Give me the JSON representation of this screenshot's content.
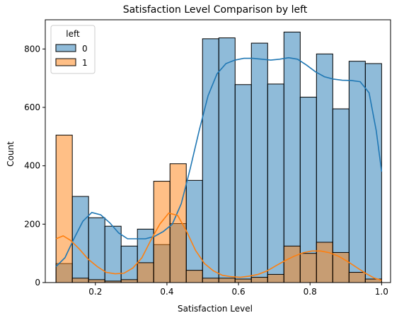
{
  "chart_data": {
    "type": "histogram",
    "title": "Satisfaction Level Comparison by left",
    "xlabel": "Satisfaction Level",
    "ylabel": "Count",
    "xlim": [
      0.06,
      1.025
    ],
    "ylim": [
      0,
      900
    ],
    "xticks": [
      0.2,
      0.4,
      0.6,
      0.8,
      1.0
    ],
    "xtick_labels": [
      "0.2",
      "0.4",
      "0.6",
      "0.8",
      "1.0"
    ],
    "yticks": [
      0,
      200,
      400,
      600,
      800
    ],
    "ytick_labels": [
      "0",
      "200",
      "400",
      "600",
      "800"
    ],
    "grid": false,
    "legend": {
      "title": "left",
      "placement": "top-left"
    },
    "bin_edges": [
      0.09,
      0.1355,
      0.181,
      0.2265,
      0.272,
      0.3175,
      0.363,
      0.4085,
      0.454,
      0.4995,
      0.545,
      0.5905,
      0.636,
      0.6815,
      0.727,
      0.7725,
      0.818,
      0.8635,
      0.909,
      0.9545,
      1.0
    ],
    "series": [
      {
        "name": "0",
        "color": "#1f77b4",
        "counts": [
          65,
          295,
          222,
          193,
          125,
          183,
          130,
          202,
          350,
          835,
          838,
          678,
          820,
          680,
          858,
          635,
          783,
          595,
          758,
          750
        ],
        "kde": [
          [
            0.09,
            55
          ],
          [
            0.115,
            85
          ],
          [
            0.14,
            150
          ],
          [
            0.165,
            210
          ],
          [
            0.19,
            240
          ],
          [
            0.215,
            232
          ],
          [
            0.24,
            205
          ],
          [
            0.265,
            170
          ],
          [
            0.29,
            150
          ],
          [
            0.315,
            150
          ],
          [
            0.34,
            150
          ],
          [
            0.365,
            158
          ],
          [
            0.39,
            175
          ],
          [
            0.415,
            200
          ],
          [
            0.44,
            270
          ],
          [
            0.465,
            390
          ],
          [
            0.49,
            520
          ],
          [
            0.515,
            640
          ],
          [
            0.54,
            715
          ],
          [
            0.565,
            750
          ],
          [
            0.59,
            762
          ],
          [
            0.615,
            768
          ],
          [
            0.64,
            768
          ],
          [
            0.665,
            765
          ],
          [
            0.69,
            762
          ],
          [
            0.715,
            765
          ],
          [
            0.74,
            770
          ],
          [
            0.765,
            765
          ],
          [
            0.79,
            745
          ],
          [
            0.815,
            722
          ],
          [
            0.84,
            705
          ],
          [
            0.865,
            697
          ],
          [
            0.89,
            693
          ],
          [
            0.915,
            692
          ],
          [
            0.94,
            688
          ],
          [
            0.965,
            650
          ],
          [
            0.985,
            520
          ],
          [
            1.0,
            380
          ]
        ]
      },
      {
        "name": "1",
        "color": "#ff7f0e",
        "counts": [
          505,
          15,
          10,
          5,
          10,
          68,
          347,
          407,
          42,
          15,
          15,
          12,
          18,
          28,
          125,
          100,
          138,
          103,
          35,
          12
        ],
        "kde": [
          [
            0.09,
            150
          ],
          [
            0.11,
            160
          ],
          [
            0.13,
            145
          ],
          [
            0.155,
            115
          ],
          [
            0.18,
            80
          ],
          [
            0.205,
            55
          ],
          [
            0.23,
            35
          ],
          [
            0.255,
            30
          ],
          [
            0.28,
            32
          ],
          [
            0.305,
            50
          ],
          [
            0.33,
            85
          ],
          [
            0.355,
            145
          ],
          [
            0.38,
            200
          ],
          [
            0.405,
            238
          ],
          [
            0.43,
            230
          ],
          [
            0.455,
            175
          ],
          [
            0.48,
            110
          ],
          [
            0.505,
            65
          ],
          [
            0.53,
            40
          ],
          [
            0.555,
            25
          ],
          [
            0.58,
            20
          ],
          [
            0.605,
            18
          ],
          [
            0.63,
            22
          ],
          [
            0.655,
            28
          ],
          [
            0.68,
            40
          ],
          [
            0.705,
            58
          ],
          [
            0.73,
            75
          ],
          [
            0.755,
            90
          ],
          [
            0.78,
            102
          ],
          [
            0.805,
            108
          ],
          [
            0.83,
            108
          ],
          [
            0.855,
            102
          ],
          [
            0.88,
            90
          ],
          [
            0.905,
            72
          ],
          [
            0.93,
            52
          ],
          [
            0.955,
            32
          ],
          [
            0.98,
            15
          ],
          [
            1.0,
            8
          ]
        ]
      }
    ]
  }
}
